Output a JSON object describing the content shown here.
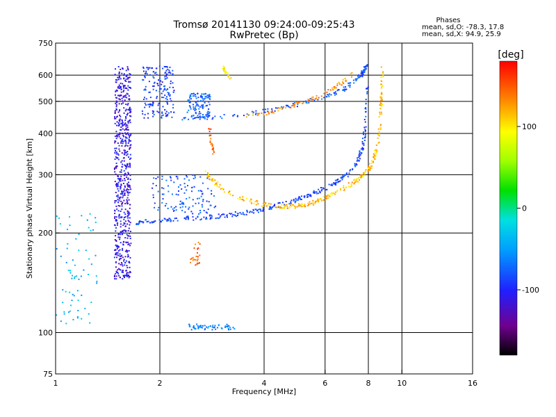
{
  "chart_data": {
    "type": "scatter",
    "title": "Tromsø 20141130 09:24:00-09:25:43",
    "subtitle": "RwPretec (Bp)",
    "xlabel": "Frequency [MHz]",
    "ylabel": "Stationary phase Virtual Height [km]",
    "x_scale": "log",
    "y_scale": "log",
    "xlim": [
      1,
      16
    ],
    "ylim": [
      75,
      750
    ],
    "x_ticks": [
      1,
      2,
      4,
      6,
      8,
      10,
      16
    ],
    "x_tick_labels": [
      "1",
      "2",
      "4",
      "6",
      "8",
      "10",
      "16"
    ],
    "y_ticks": [
      75,
      100,
      200,
      300,
      400,
      500,
      600,
      750
    ],
    "y_tick_labels": [
      "75",
      "100",
      "200",
      "300",
      "400",
      "500",
      "600",
      "750"
    ],
    "grid": true,
    "info": {
      "heading": "Phases",
      "line_o": "mean, sd,O: -78.3, 17.8",
      "line_x": "mean, sd,X:  94.9, 25.9"
    },
    "colorbar": {
      "label": "[deg]",
      "range": [
        -180,
        180
      ],
      "ticks": [
        100,
        0,
        -100
      ],
      "tick_labels": [
        "100",
        "0",
        "-100"
      ]
    },
    "series": [
      {
        "name": "vertical band 1.6 MHz",
        "kind": "band",
        "f": [
          1.48,
          1.65
        ],
        "h": [
          145,
          640
        ],
        "phase": -110,
        "n": 650
      },
      {
        "name": "upper spread 1.8-2.2 MHz",
        "kind": "band",
        "f": [
          1.78,
          2.2
        ],
        "h": [
          445,
          640
        ],
        "phase": -90,
        "n": 170
      },
      {
        "name": "upper spread 2.4-2.8 MHz",
        "kind": "band",
        "f": [
          2.4,
          2.8
        ],
        "h": [
          445,
          530
        ],
        "phase": -75,
        "n": 110
      },
      {
        "name": "mid spread 1.9-2.9 MHz",
        "kind": "band",
        "f": [
          1.9,
          2.9
        ],
        "h": [
          228,
          300
        ],
        "phase": -80,
        "n": 120
      },
      {
        "name": "F2 O trace lower",
        "kind": "curve",
        "f": [
          1.7,
          1.85,
          2.1,
          2.5,
          3.0,
          3.5,
          4.0,
          4.5,
          5.0,
          5.5,
          6.0,
          6.5,
          7.0,
          7.4,
          7.7,
          7.85,
          7.95
        ],
        "h": [
          214,
          217,
          220,
          222,
          225,
          230,
          236,
          244,
          252,
          262,
          273,
          286,
          302,
          325,
          360,
          420,
          560
        ],
        "phase": -85,
        "n": 300
      },
      {
        "name": "F2 O trace upper",
        "kind": "curve",
        "f": [
          2.3,
          2.8,
          3.4,
          4.2,
          5.0,
          6.0,
          6.8,
          7.3,
          7.6,
          7.8,
          7.9
        ],
        "h": [
          445,
          448,
          455,
          470,
          490,
          515,
          545,
          575,
          600,
          620,
          640
        ],
        "phase": -80,
        "n": 160
      },
      {
        "name": "F2 X trace lower",
        "kind": "curve",
        "f": [
          2.7,
          3.0,
          3.5,
          4.0,
          4.5,
          5.0,
          5.5,
          6.0,
          6.5,
          7.0,
          7.5,
          8.0,
          8.3,
          8.5,
          8.65,
          8.75,
          8.8
        ],
        "h": [
          305,
          272,
          252,
          244,
          240,
          241,
          246,
          256,
          266,
          278,
          292,
          310,
          335,
          370,
          430,
          520,
          640
        ],
        "phase": 115,
        "n": 300
      },
      {
        "name": "F2 X trace upper",
        "kind": "curve",
        "f": [
          3.5,
          4.2,
          5.0,
          5.8,
          6.5,
          7.2
        ],
        "h": [
          450,
          465,
          490,
          520,
          555,
          605
        ],
        "phase": 130,
        "n": 80
      },
      {
        "name": "X segment 3.1 MHz",
        "kind": "curve",
        "f": [
          3.05,
          3.12,
          3.2
        ],
        "h": [
          640,
          610,
          580
        ],
        "phase": 100,
        "n": 25
      },
      {
        "name": "X segment 2.8 MHz",
        "kind": "curve",
        "f": [
          2.78,
          2.82,
          2.86
        ],
        "h": [
          410,
          380,
          345
        ],
        "phase": 150,
        "n": 22
      },
      {
        "name": "X blob 2.5 MHz",
        "kind": "band",
        "f": [
          2.45,
          2.62
        ],
        "h": [
          160,
          190
        ],
        "phase": 145,
        "n": 25
      },
      {
        "name": "E-layer traces 100 km",
        "kind": "band",
        "f": [
          2.4,
          3.3
        ],
        "h": [
          102,
          106
        ],
        "phase": -60,
        "n": 60
      },
      {
        "name": "low frequency echoes",
        "kind": "band",
        "f": [
          1.0,
          1.32
        ],
        "h": [
          105,
          230
        ],
        "phase": -40,
        "n": 70
      }
    ]
  }
}
